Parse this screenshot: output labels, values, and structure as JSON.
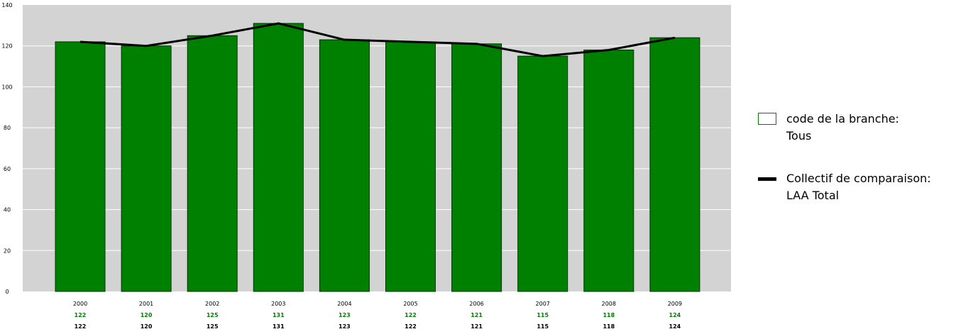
{
  "chart_data": {
    "type": "bar",
    "categories": [
      "2000",
      "2001",
      "2002",
      "2003",
      "2004",
      "2005",
      "2006",
      "2007",
      "2008",
      "2009"
    ],
    "series": [
      {
        "name": "code de la branche:",
        "name_line2": "Tous",
        "kind": "bar",
        "color": "#008000",
        "values": [
          122,
          120,
          125,
          131,
          123,
          122,
          121,
          115,
          118,
          124
        ]
      },
      {
        "name": "Collectif de comparaison:",
        "name_line2": "LAA Total",
        "kind": "line",
        "color": "#000000",
        "values": [
          122,
          120,
          125,
          131,
          123,
          122,
          121,
          115,
          118,
          124
        ]
      }
    ],
    "yticks": [
      "0",
      "20",
      "40",
      "60",
      "80",
      "100",
      "120",
      "140"
    ],
    "ylim": [
      0,
      140
    ],
    "grid": true,
    "plot_background": "#d3d3d3",
    "legend_position": "right"
  }
}
